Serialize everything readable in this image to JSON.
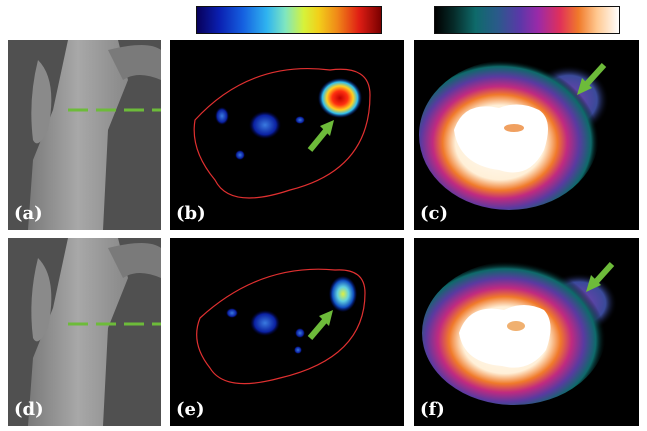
{
  "panels": {
    "a": "(a)",
    "b": "(b)",
    "c": "(c)",
    "d": "(d)",
    "e": "(e)",
    "f": "(f)"
  },
  "colors": {
    "background": "#ffffff",
    "scan_line": "#6dbb3a",
    "roi_outline": "#e03030",
    "arrow": "#6dbb3a"
  }
}
